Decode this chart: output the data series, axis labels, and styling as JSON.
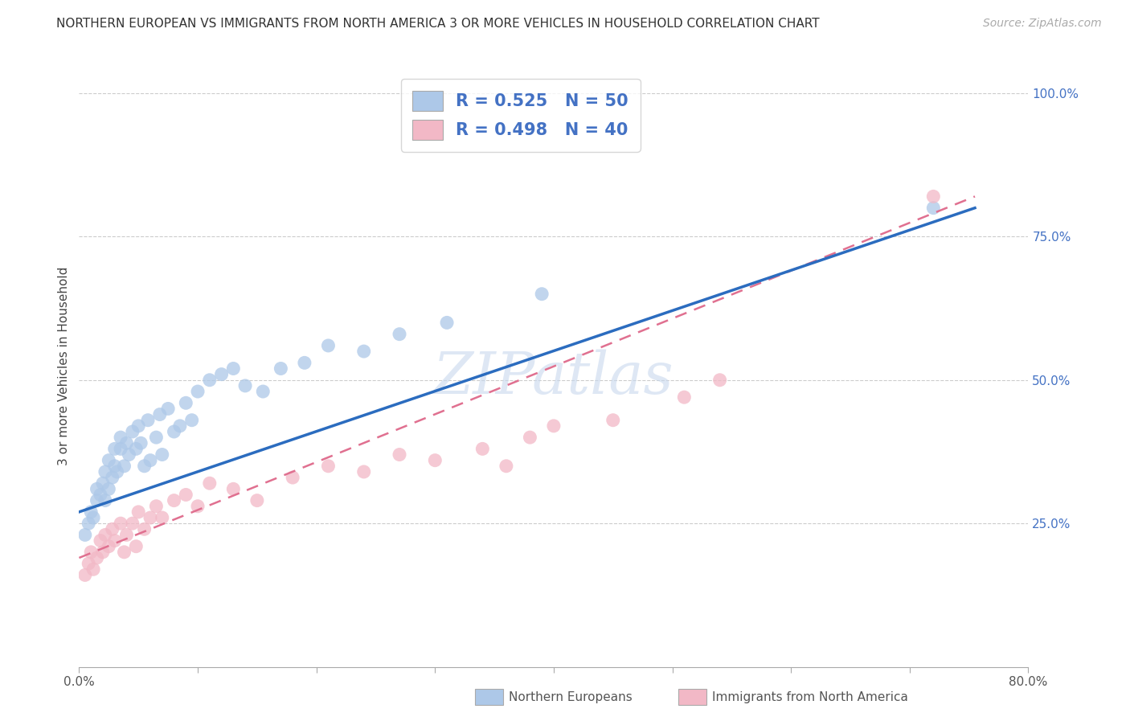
{
  "title": "NORTHERN EUROPEAN VS IMMIGRANTS FROM NORTH AMERICA 3 OR MORE VEHICLES IN HOUSEHOLD CORRELATION CHART",
  "source": "Source: ZipAtlas.com",
  "ylabel": "3 or more Vehicles in Household",
  "xlim": [
    0.0,
    0.8
  ],
  "ylim": [
    0.0,
    1.05
  ],
  "blue_R": 0.525,
  "blue_N": 50,
  "pink_R": 0.498,
  "pink_N": 40,
  "blue_color": "#adc8e8",
  "pink_color": "#f2b8c6",
  "blue_line_color": "#2b6cbf",
  "pink_line_color": "#e07090",
  "pink_line_dash": true,
  "legend_label_blue": "Northern Europeans",
  "legend_label_pink": "Immigrants from North America",
  "watermark_text": "ZIPatlas",
  "title_fontsize": 11,
  "axis_fontsize": 11,
  "tick_fontsize": 11,
  "legend_fontsize": 15,
  "watermark_fontsize": 52,
  "source_fontsize": 10,
  "blue_x": [
    0.005,
    0.008,
    0.01,
    0.012,
    0.015,
    0.015,
    0.018,
    0.02,
    0.022,
    0.022,
    0.025,
    0.025,
    0.028,
    0.03,
    0.03,
    0.032,
    0.035,
    0.035,
    0.038,
    0.04,
    0.042,
    0.045,
    0.048,
    0.05,
    0.052,
    0.055,
    0.058,
    0.06,
    0.065,
    0.068,
    0.07,
    0.075,
    0.08,
    0.085,
    0.09,
    0.095,
    0.1,
    0.11,
    0.12,
    0.13,
    0.14,
    0.155,
    0.17,
    0.19,
    0.21,
    0.24,
    0.27,
    0.31,
    0.39,
    0.72
  ],
  "blue_y": [
    0.23,
    0.25,
    0.27,
    0.26,
    0.29,
    0.31,
    0.3,
    0.32,
    0.29,
    0.34,
    0.31,
    0.36,
    0.33,
    0.35,
    0.38,
    0.34,
    0.38,
    0.4,
    0.35,
    0.39,
    0.37,
    0.41,
    0.38,
    0.42,
    0.39,
    0.35,
    0.43,
    0.36,
    0.4,
    0.44,
    0.37,
    0.45,
    0.41,
    0.42,
    0.46,
    0.43,
    0.48,
    0.5,
    0.51,
    0.52,
    0.49,
    0.48,
    0.52,
    0.53,
    0.56,
    0.55,
    0.58,
    0.6,
    0.65,
    0.8
  ],
  "pink_x": [
    0.005,
    0.008,
    0.01,
    0.012,
    0.015,
    0.018,
    0.02,
    0.022,
    0.025,
    0.028,
    0.03,
    0.035,
    0.038,
    0.04,
    0.045,
    0.048,
    0.05,
    0.055,
    0.06,
    0.065,
    0.07,
    0.08,
    0.09,
    0.1,
    0.11,
    0.13,
    0.15,
    0.18,
    0.21,
    0.24,
    0.27,
    0.3,
    0.34,
    0.36,
    0.38,
    0.4,
    0.45,
    0.51,
    0.54,
    0.72
  ],
  "pink_y": [
    0.16,
    0.18,
    0.2,
    0.17,
    0.19,
    0.22,
    0.2,
    0.23,
    0.21,
    0.24,
    0.22,
    0.25,
    0.2,
    0.23,
    0.25,
    0.21,
    0.27,
    0.24,
    0.26,
    0.28,
    0.26,
    0.29,
    0.3,
    0.28,
    0.32,
    0.31,
    0.29,
    0.33,
    0.35,
    0.34,
    0.37,
    0.36,
    0.38,
    0.35,
    0.4,
    0.42,
    0.43,
    0.47,
    0.5,
    0.82
  ],
  "blue_line_x0": 0.0,
  "blue_line_y0": 0.27,
  "blue_line_x1": 0.755,
  "blue_line_y1": 0.8,
  "pink_line_x0": 0.0,
  "pink_line_y0": 0.19,
  "pink_line_x1": 0.755,
  "pink_line_y1": 0.82
}
